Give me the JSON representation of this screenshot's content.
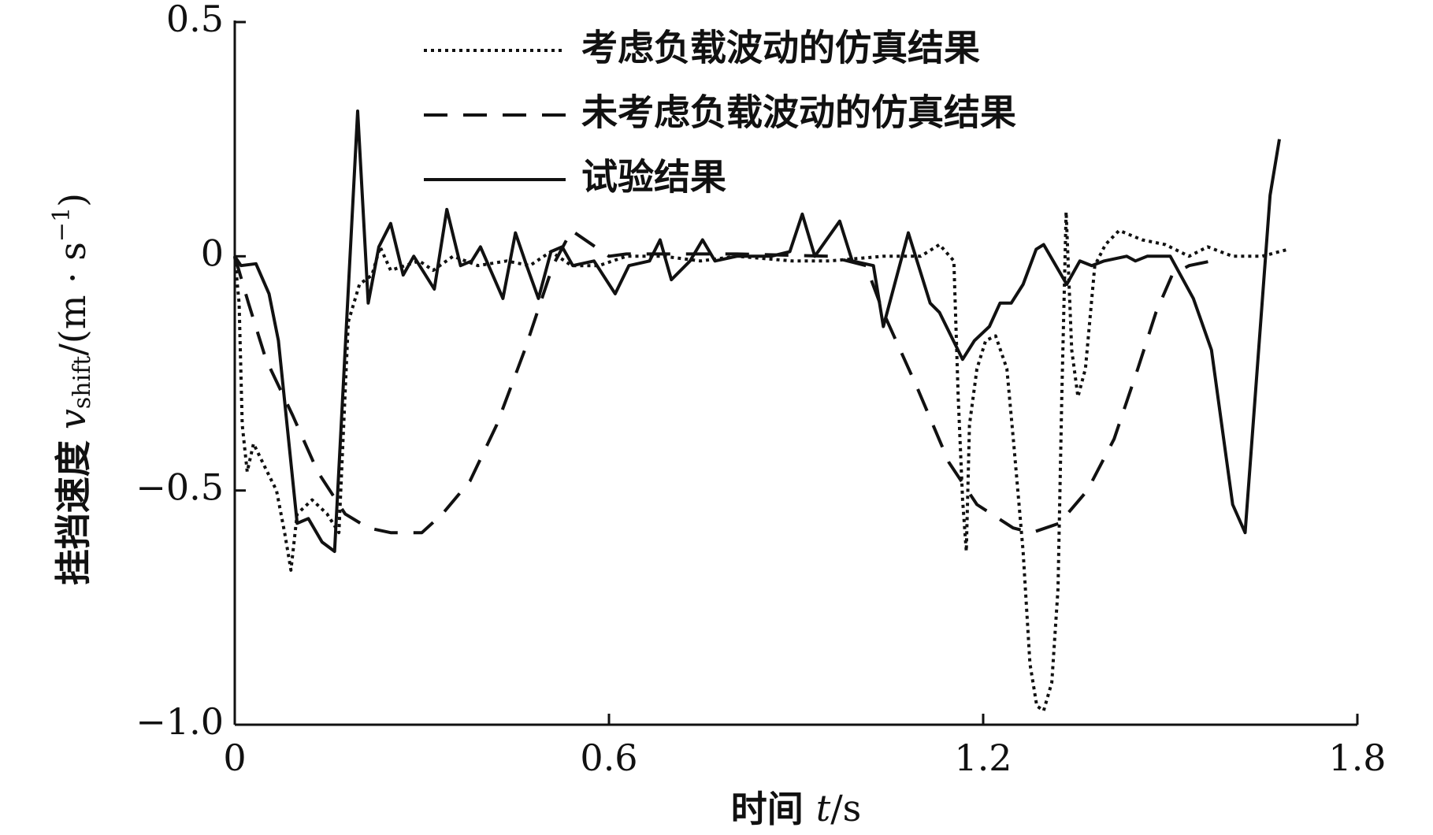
{
  "chart_data": {
    "type": "line",
    "ylabel": {
      "text": "挂挡速度",
      "var": "v",
      "sub": "shift",
      "unit": "/(m · s",
      "sup": "−1",
      "close": ")"
    },
    "xlabel": {
      "text": "时间",
      "var": "t",
      "unit": "/s"
    },
    "xlim": [
      0,
      1.8
    ],
    "xticks": [
      0,
      0.6,
      1.2,
      1.8
    ],
    "ylim": [
      -1.0,
      0.5
    ],
    "yticks": [
      {
        "value": -1.0,
        "label": "−1.0"
      },
      {
        "value": -0.5,
        "label": "−0.5"
      },
      0,
      0.5
    ],
    "legend": "upper center",
    "series": [
      {
        "name": "考虑负载波动的仿真结果",
        "color": "#111111",
        "dash": "dotted",
        "x": [
          0,
          0.007,
          0.012,
          0.02,
          0.03,
          0.052,
          0.067,
          0.08,
          0.09,
          0.1,
          0.124,
          0.148,
          0.167,
          0.182,
          0.2,
          0.22,
          0.233,
          0.25,
          0.273,
          0.296,
          0.318,
          0.35,
          0.39,
          0.436,
          0.473,
          0.507,
          0.54,
          0.584,
          0.628,
          0.687,
          0.747,
          0.805,
          0.894,
          0.953,
          1.04,
          1.1,
          1.13,
          1.153,
          1.16,
          1.167,
          1.173,
          1.178,
          1.19,
          1.204,
          1.22,
          1.238,
          1.249,
          1.264,
          1.275,
          1.286,
          1.297,
          1.31,
          1.32,
          1.326,
          1.333,
          1.342,
          1.352,
          1.364,
          1.379,
          1.396,
          1.418,
          1.455,
          1.492,
          1.53,
          1.56,
          1.6,
          1.647,
          1.69
        ],
        "values": [
          0,
          -0.1,
          -0.36,
          -0.46,
          -0.4,
          -0.46,
          -0.5,
          -0.59,
          -0.67,
          -0.55,
          -0.52,
          -0.55,
          -0.59,
          -0.14,
          -0.06,
          -0.04,
          0.02,
          -0.03,
          -0.02,
          -0.01,
          -0.03,
          0,
          -0.02,
          -0.01,
          -0.02,
          0.01,
          -0.02,
          -0.02,
          0,
          0,
          -0.01,
          0,
          -0.01,
          -0.01,
          0,
          0,
          0.025,
          -0.01,
          -0.3,
          -0.52,
          -0.63,
          -0.36,
          -0.24,
          -0.18,
          -0.17,
          -0.24,
          -0.4,
          -0.63,
          -0.87,
          -0.96,
          -0.97,
          -0.91,
          -0.71,
          -0.3,
          0.095,
          -0.2,
          -0.3,
          -0.24,
          -0.02,
          0.025,
          0.055,
          0.035,
          0.025,
          0,
          0.02,
          0,
          0,
          0.015
        ]
      },
      {
        "name": "未考虑负载波动的仿真结果",
        "color": "#111111",
        "dash": "dashed",
        "x": [
          0,
          0.022,
          0.05,
          0.093,
          0.133,
          0.177,
          0.214,
          0.25,
          0.3,
          0.333,
          0.377,
          0.42,
          0.465,
          0.495,
          0.51,
          0.54,
          0.6,
          0.628,
          0.805,
          0.953,
          1.012,
          1.04,
          1.094,
          1.145,
          1.19,
          1.248,
          1.278,
          1.322,
          1.367,
          1.41,
          1.448,
          1.477,
          1.503,
          1.53,
          1.566
        ],
        "values": [
          0,
          -0.1,
          -0.22,
          -0.34,
          -0.46,
          -0.55,
          -0.58,
          -0.59,
          -0.59,
          -0.55,
          -0.48,
          -0.36,
          -0.2,
          -0.08,
          -0.02,
          0.055,
          0,
          0.005,
          0.005,
          0,
          -0.02,
          -0.12,
          -0.28,
          -0.44,
          -0.53,
          -0.58,
          -0.59,
          -0.57,
          -0.5,
          -0.39,
          -0.24,
          -0.12,
          -0.04,
          -0.02,
          -0.01
        ]
      },
      {
        "name": "试验结果",
        "color": "#111111",
        "dash": "solid",
        "x": [
          0,
          0.01,
          0.034,
          0.055,
          0.07,
          0.1,
          0.118,
          0.14,
          0.16,
          0.197,
          0.214,
          0.231,
          0.25,
          0.27,
          0.287,
          0.32,
          0.34,
          0.362,
          0.38,
          0.394,
          0.43,
          0.45,
          0.468,
          0.487,
          0.507,
          0.525,
          0.542,
          0.576,
          0.61,
          0.632,
          0.665,
          0.682,
          0.7,
          0.73,
          0.75,
          0.77,
          0.805,
          0.86,
          0.89,
          0.91,
          0.93,
          0.97,
          0.99,
          1.024,
          1.04,
          1.08,
          1.115,
          1.13,
          1.167,
          1.186,
          1.21,
          1.227,
          1.245,
          1.264,
          1.285,
          1.297,
          1.334,
          1.355,
          1.374,
          1.394,
          1.43,
          1.444,
          1.463,
          1.5,
          1.537,
          1.566,
          1.6,
          1.62,
          1.66,
          1.675
        ],
        "values": [
          0,
          -0.02,
          -0.016,
          -0.08,
          -0.18,
          -0.57,
          -0.56,
          -0.61,
          -0.63,
          0.31,
          -0.1,
          0.02,
          0.07,
          -0.04,
          0,
          -0.07,
          0.1,
          -0.02,
          -0.01,
          0.02,
          -0.09,
          0.05,
          -0.02,
          -0.09,
          0.01,
          0.02,
          -0.02,
          -0.01,
          -0.08,
          -0.02,
          -0.01,
          0.035,
          -0.05,
          -0.01,
          0.035,
          -0.01,
          0,
          0,
          0.01,
          0.09,
          0,
          0.075,
          -0.01,
          -0.02,
          -0.15,
          0.05,
          -0.1,
          -0.12,
          -0.22,
          -0.18,
          -0.15,
          -0.1,
          -0.1,
          -0.06,
          0.015,
          0.025,
          -0.06,
          -0.01,
          -0.02,
          -0.01,
          0,
          -0.01,
          0,
          0,
          -0.09,
          -0.2,
          -0.53,
          -0.59,
          0.13,
          0.25
        ]
      }
    ]
  }
}
